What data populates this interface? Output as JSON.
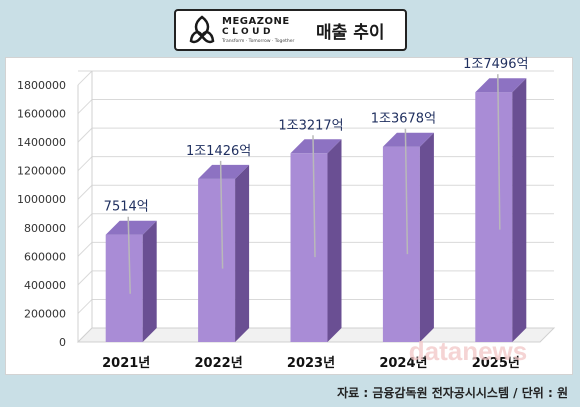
{
  "header": {
    "brand_main": "MEGAZONE",
    "brand_sub": "CLOUD",
    "brand_tagline": "Transform · Tomorrow · Together",
    "title": "매출 추이"
  },
  "watermark": "datanews",
  "source": "자료 : 금융감독원 전자공시시스템 / 단위 : 원",
  "chart_data": {
    "type": "bar",
    "categories": [
      "2021년",
      "2022년",
      "2023년",
      "2024년",
      "2025년"
    ],
    "values": [
      751400,
      1142600,
      1321700,
      1367800,
      1749600
    ],
    "data_labels": [
      "7514억",
      "1조1426억",
      "1조3217억",
      "1조3678억",
      "1조7496억"
    ],
    "y_ticks": [
      0,
      200000,
      400000,
      600000,
      800000,
      1000000,
      1200000,
      1400000,
      1600000,
      1800000
    ],
    "ylim": [
      0,
      1800000
    ],
    "title": "",
    "xlabel": "",
    "ylabel": "",
    "grid": true,
    "bar_color": "#a98cd6",
    "bar_side_color": "#6a4f93",
    "bar_top_color": "#8d72c2"
  }
}
